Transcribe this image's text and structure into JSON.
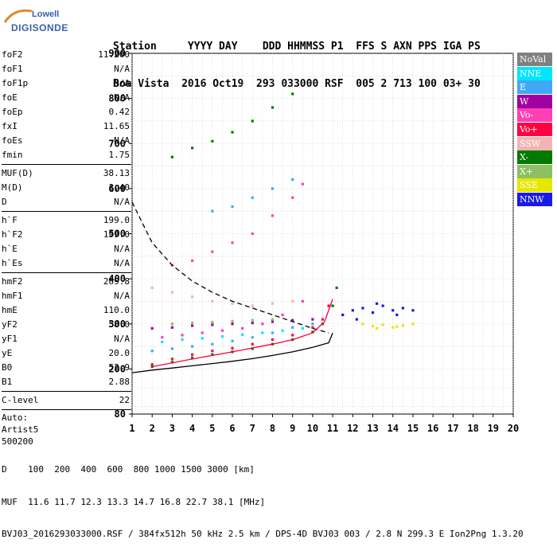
{
  "logo": {
    "line1": "Lowell",
    "line2": "DIGISONDE"
  },
  "header": {
    "row1": "Station     YYYY DAY    DDD HHMMSS P1  FFS S AXN PPS IGA PS",
    "row2": "Boa Vista  2016 Oct19  293 033000 RSF  005 2 713 100 03+ 30"
  },
  "params": [
    {
      "k": "foF2",
      "v": "11.200"
    },
    {
      "k": "foF1",
      "v": "N/A"
    },
    {
      "k": "foF1p",
      "v": "N/A"
    },
    {
      "k": "foE",
      "v": "N/A"
    },
    {
      "k": "foEp",
      "v": "0.42"
    },
    {
      "k": "fxI",
      "v": "11.65"
    },
    {
      "k": "foEs",
      "v": "N/A"
    },
    {
      "k": "fmin",
      "v": "1.75"
    },
    {
      "k": "MUF(D)",
      "v": "38.13"
    },
    {
      "k": "M(D)",
      "v": "3.40"
    },
    {
      "k": "D",
      "v": "N/A"
    },
    {
      "k": "h`F",
      "v": "199.0"
    },
    {
      "k": "h`F2",
      "v": "199.0"
    },
    {
      "k": "h`E",
      "v": "N/A"
    },
    {
      "k": "h`Es",
      "v": "N/A"
    },
    {
      "k": "hmF2",
      "v": "269.8"
    },
    {
      "k": "hmF1",
      "v": "N/A"
    },
    {
      "k": "hmE",
      "v": "110.0"
    },
    {
      "k": "yF2",
      "v": "58.0"
    },
    {
      "k": "yF1",
      "v": "N/A"
    },
    {
      "k": "yE",
      "v": "20.0"
    },
    {
      "k": "B0",
      "v": "52.9"
    },
    {
      "k": "B1",
      "v": "2.88"
    },
    {
      "k": "C-level",
      "v": "22"
    }
  ],
  "auto_lines": [
    "Auto:",
    "Artist5",
    "500200"
  ],
  "legend": [
    {
      "label": "NoVal",
      "color": "#808080"
    },
    {
      "label": "NNE",
      "color": "#00e5ff"
    },
    {
      "label": "E",
      "color": "#3fa9f5"
    },
    {
      "label": "W",
      "color": "#a000a0"
    },
    {
      "label": "Vo-",
      "color": "#ff3fb4"
    },
    {
      "label": "Vo+",
      "color": "#ff0040"
    },
    {
      "label": "SSW",
      "color": "#f4b4b4"
    },
    {
      "label": "X-",
      "color": "#007a00"
    },
    {
      "label": "X+",
      "color": "#8cc060"
    },
    {
      "label": "SSE",
      "color": "#e6e600"
    },
    {
      "label": "NNW",
      "color": "#1a1ae6"
    }
  ],
  "chart_data": {
    "type": "scatter",
    "xlim": [
      1,
      20
    ],
    "ylim": [
      80,
      900
    ],
    "xticks": [
      "1",
      "2",
      "3",
      "4",
      "5",
      "6",
      "7",
      "8",
      "9",
      "10",
      "11",
      "12",
      "13",
      "14",
      "15",
      "16",
      "17",
      "18",
      "19",
      "20"
    ],
    "yticks": [
      "80",
      "200",
      "300",
      "400",
      "500",
      "600",
      "700",
      "800",
      "900"
    ],
    "grid": true,
    "legend_position": "right",
    "traces": [
      {
        "name": "X-",
        "color": "#007a00",
        "x": [
          2.0,
          3.0,
          4.0,
          5.0,
          6.0,
          7.0,
          8.0,
          9.0,
          10.0,
          10.5,
          11.0,
          11.2
        ],
        "y": [
          205,
          215,
          225,
          232,
          238,
          245,
          255,
          265,
          282,
          300,
          340,
          380
        ]
      },
      {
        "name": "Vo+",
        "color": "#ff0040",
        "x": [
          2.0,
          3.0,
          4.0,
          5.0,
          6.0,
          7.0,
          8.0,
          9.0,
          10.0,
          10.5,
          10.8
        ],
        "y": [
          210,
          222,
          232,
          240,
          246,
          255,
          265,
          275,
          292,
          310,
          340
        ]
      },
      {
        "name": "W",
        "color": "#a000a0",
        "x": [
          2.0,
          3.0,
          4.0,
          5.0,
          6.0,
          7.0,
          8.0,
          9.0,
          10.0
        ],
        "y": [
          290,
          292,
          296,
          298,
          300,
          302,
          305,
          308,
          310
        ]
      },
      {
        "name": "Vo-",
        "color": "#ff3fb4",
        "x": [
          2.5,
          3.5,
          4.5,
          5.5,
          6.5,
          7.5,
          8.5,
          9.5
        ],
        "y": [
          270,
          275,
          280,
          285,
          290,
          300,
          320,
          350
        ]
      },
      {
        "name": "E",
        "color": "#3fa9f5",
        "x": [
          2.0,
          3.0,
          4.0,
          5.0,
          6.0,
          7.0,
          8.0,
          9.0,
          10.0
        ],
        "y": [
          240,
          245,
          250,
          255,
          262,
          270,
          280,
          292,
          300
        ]
      },
      {
        "name": "NNE",
        "color": "#00e5ff",
        "x": [
          2.5,
          3.5,
          4.5,
          5.5,
          6.5,
          7.5,
          8.5,
          9.5
        ],
        "y": [
          260,
          265,
          268,
          272,
          276,
          280,
          285,
          290
        ]
      },
      {
        "name": "SSW",
        "color": "#f4b4b4",
        "x": [
          2.0,
          3.0,
          4.0,
          5.0,
          6.0,
          7.0,
          8.0,
          9.0
        ],
        "y": [
          380,
          370,
          360,
          350,
          345,
          340,
          345,
          350
        ]
      },
      {
        "name": "X+",
        "color": "#8cc060",
        "x": [
          3.0,
          4.0,
          5.0,
          6.0,
          7.0,
          8.0
        ],
        "y": [
          300,
          302,
          304,
          306,
          308,
          310
        ]
      },
      {
        "name": "NNW",
        "color": "#1a1ae6",
        "x": [
          11.5,
          12.0,
          12.5,
          13.0,
          13.5,
          14.0,
          14.5,
          15.0,
          12.2,
          13.2,
          14.2
        ],
        "y": [
          320,
          330,
          335,
          325,
          340,
          330,
          335,
          330,
          310,
          345,
          320
        ]
      },
      {
        "name": "SSE",
        "color": "#e6e600",
        "x": [
          12.5,
          13.0,
          13.5,
          14.0,
          14.5,
          15.0,
          13.2,
          14.2
        ],
        "y": [
          300,
          295,
          298,
          292,
          296,
          300,
          290,
          294
        ]
      },
      {
        "name": "Vo- (2F)",
        "color": "#ff3fb4",
        "x": [
          3.0,
          4.0,
          5.0,
          6.0,
          7.0,
          8.0,
          9.0,
          9.5
        ],
        "y": [
          430,
          440,
          460,
          480,
          500,
          540,
          580,
          610
        ]
      },
      {
        "name": "X- (3F)",
        "color": "#007a00",
        "x": [
          3.0,
          4.0,
          5.0,
          6.0,
          7.0,
          8.0,
          9.0
        ],
        "y": [
          670,
          690,
          705,
          725,
          750,
          780,
          810
        ]
      },
      {
        "name": "E (2F)",
        "color": "#3fa9f5",
        "x": [
          5.0,
          6.0,
          7.0,
          8.0,
          9.0
        ],
        "y": [
          550,
          560,
          580,
          600,
          620
        ]
      }
    ],
    "curves": [
      {
        "name": "dashed",
        "style": "dashed",
        "color": "#000000",
        "x": [
          1,
          2,
          3,
          4,
          5,
          6,
          7,
          8,
          9,
          10,
          10.8
        ],
        "y": [
          570,
          480,
          430,
          395,
          370,
          350,
          335,
          320,
          305,
          290,
          280
        ]
      },
      {
        "name": "profile",
        "style": "solid",
        "color": "#000000",
        "x": [
          1,
          2,
          3,
          4,
          5,
          6,
          7,
          8,
          9,
          10,
          10.8,
          11.0
        ],
        "y": [
          190,
          197,
          202,
          207,
          212,
          217,
          223,
          230,
          238,
          248,
          258,
          280
        ]
      },
      {
        "name": "red",
        "style": "solid",
        "color": "#ff0040",
        "x": [
          2,
          4,
          6,
          8,
          9,
          10,
          10.6,
          11.0
        ],
        "y": [
          205,
          222,
          238,
          255,
          265,
          280,
          305,
          355
        ]
      }
    ]
  },
  "bottom": {
    "line1": "D    100  200  400  600  800 1000 1500 3000 [km]",
    "line2": "MUF  11.6 11.7 12.3 13.3 14.7 16.8 22.7 38.1 [MHz]",
    "line3": "BVJ03_2016293033000.RSF / 384fx512h 50 kHz 2.5 km / DPS-4D BVJ03 003 / 2.8 N 299.3 E Ion2Png 1.3.20"
  }
}
